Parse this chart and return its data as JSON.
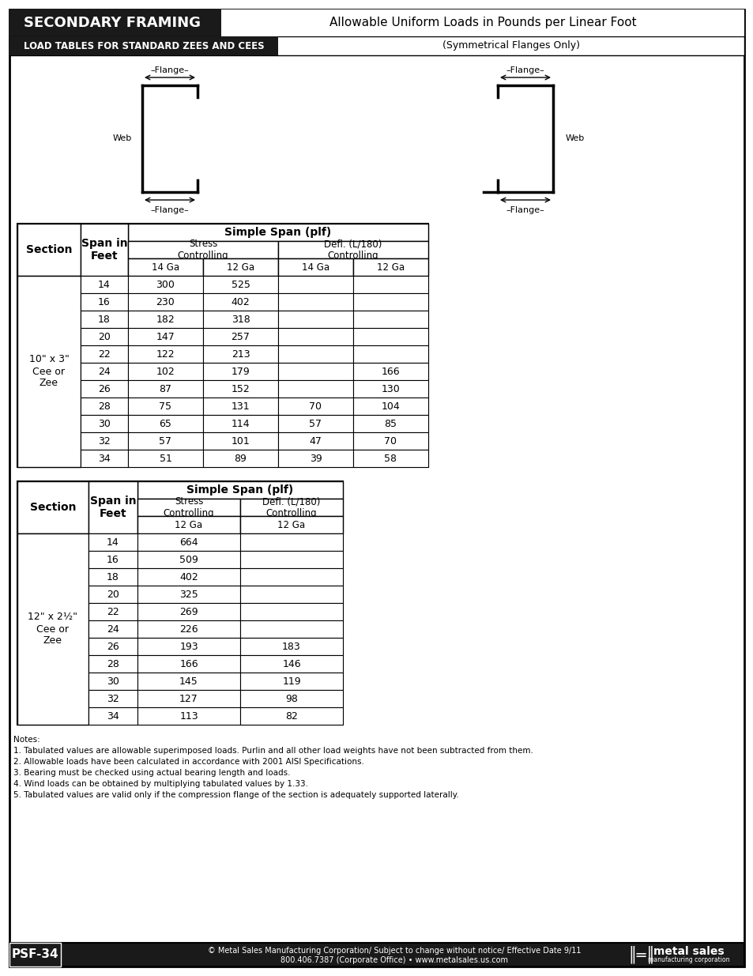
{
  "page_title_left": "SECONDARY FRAMING",
  "page_title_right": "Allowable Uniform Loads in Pounds per Linear Foot",
  "section_label": "LOAD TABLES FOR STANDARD ZEES AND CEES",
  "section_label2": "(Symmetrical Flanges Only)",
  "table1": {
    "section_name": "10\" x 3\"\nCee or\nZee",
    "ga_headers": [
      "14 Ga",
      "12 Ga",
      "14 Ga",
      "12 Ga"
    ],
    "spans": [
      14,
      16,
      18,
      20,
      22,
      24,
      26,
      28,
      30,
      32,
      34
    ],
    "stress_14ga": [
      300,
      230,
      182,
      147,
      122,
      102,
      87,
      75,
      65,
      57,
      51
    ],
    "stress_12ga": [
      525,
      402,
      318,
      257,
      213,
      179,
      152,
      131,
      114,
      101,
      89
    ],
    "defl_14ga": [
      "",
      "",
      "",
      "",
      "",
      "",
      "",
      "70",
      "57",
      "47",
      "39"
    ],
    "defl_12ga": [
      "",
      "",
      "",
      "",
      "",
      "166",
      "130",
      "104",
      "85",
      "70",
      "58"
    ]
  },
  "table2": {
    "section_name": "12\" x 2½\"\nCee or\nZee",
    "ga_headers": [
      "12 Ga",
      "12 Ga"
    ],
    "spans": [
      14,
      16,
      18,
      20,
      22,
      24,
      26,
      28,
      30,
      32,
      34
    ],
    "stress_12ga": [
      664,
      509,
      402,
      325,
      269,
      226,
      193,
      166,
      145,
      127,
      113
    ],
    "defl_12ga": [
      "",
      "",
      "",
      "",
      "",
      "",
      "183",
      "146",
      "119",
      "98",
      "82"
    ]
  },
  "notes": [
    "Notes:",
    "1. Tabulated values are allowable superimposed loads. Purlin and all other load weights have not been subtracted from them.",
    "2. Allowable loads have been calculated in accordance with 2001 AISI Specifications.",
    "3. Bearing must be checked using actual bearing length and loads.",
    "4. Wind loads can be obtained by multiplying tabulated values by 1.33.",
    "5. Tabulated values are valid only if the compression flange of the section is adequately supported laterally."
  ],
  "footer_left": "PSF-34",
  "footer_center1": "© Metal Sales Manufacturing Corporation/ Subject to change without notice/ Effective Date 9/11",
  "footer_center2": "800.406.7387 (Corporate Office) • www.metalsales.us.com",
  "bg_color": "#ffffff",
  "header_bg": "#1a1a1a",
  "border_color": "#000000"
}
